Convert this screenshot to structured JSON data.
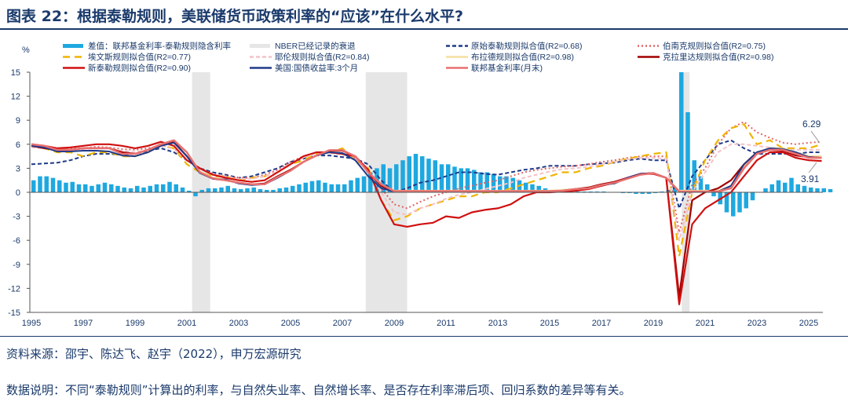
{
  "title": "图表 22：根据泰勒规则，美联储货币政策利率的“应该”在什么水平?",
  "source": "资料来源：邵宇、陈达飞、赵宇（2022），申万宏源研究",
  "note": "数据说明：不同“泰勒规则”计算出的利率，与自然失业率、自然增长率、是否存在利率滞后项、回归系数的差异等有关。",
  "chart_data": {
    "type": "line",
    "ylabel": "%",
    "ylim": [
      -15,
      15
    ],
    "yticks": [
      15,
      12,
      9,
      6,
      3,
      0,
      -3,
      -6,
      -9,
      -12,
      -15
    ],
    "xlim": [
      1995,
      2025.8
    ],
    "xticks": [
      "1995",
      "1997",
      "1999",
      "2001",
      "2003",
      "2005",
      "2007",
      "2009",
      "2011",
      "2013",
      "2015",
      "2017",
      "2019",
      "2021",
      "2023",
      "2025"
    ],
    "recessions": [
      [
        2001.2,
        2001.9
      ],
      [
        2007.9,
        2009.5
      ],
      [
        2020.1,
        2020.4
      ]
    ],
    "recession_label": "NBER已经记录的衰退",
    "x_start": 1995,
    "x_step": 0.5,
    "bars": {
      "name": "差值：联邦基金利率-泰勒规则隐含利率",
      "color": "#1ea8e0",
      "x_start": 1995,
      "x_step": 0.25,
      "values": [
        1.5,
        2,
        2,
        1.8,
        1.5,
        1.2,
        1.3,
        1,
        1,
        0.8,
        1,
        1.2,
        1,
        0.8,
        0.6,
        0.5,
        0.8,
        0.6,
        0.8,
        1,
        1,
        1.3,
        1,
        0.6,
        0.2,
        -0.5,
        0.3,
        0.5,
        0.5,
        0.6,
        0.8,
        0.5,
        0.4,
        0.5,
        0.6,
        0.4,
        0.3,
        0.3,
        0.5,
        0.6,
        0.8,
        1,
        1.2,
        1.4,
        1.5,
        1.2,
        1,
        1,
        1,
        1.5,
        1.8,
        2,
        2.5,
        3,
        3.5,
        3,
        3.5,
        4,
        4.5,
        4.8,
        4.5,
        4.2,
        4,
        3.5,
        3.5,
        3.2,
        3,
        3,
        2.8,
        2.5,
        2.5,
        2.3,
        2,
        2,
        1.8,
        1.5,
        1.2,
        1,
        0.8,
        0.5,
        0.3,
        0.2,
        0.1,
        0.1,
        0.1,
        0.1,
        0.1,
        0.1,
        0.1,
        0,
        0,
        -0.1,
        -0.1,
        -0.2,
        -0.2,
        -0.2,
        -0.1,
        0.1,
        0.3,
        0.5,
        15,
        10,
        4,
        2,
        1,
        -0.5,
        -1.5,
        -2.5,
        -3,
        -2.5,
        -2,
        -1,
        0,
        0.5,
        1,
        1.5,
        1.2,
        1.8,
        1,
        0.8,
        0.6,
        0.5,
        0.5,
        0.4
      ]
    },
    "series": [
      {
        "name": "原始泰勒规则拟合值(R2=0.68)",
        "color": "#1f3a8a",
        "style": "dash",
        "width": 2,
        "values": [
          3.5,
          3.6,
          3.7,
          4,
          4.5,
          4.8,
          4.8,
          4.7,
          4.8,
          5.2,
          5.5,
          5,
          4,
          3,
          2.5,
          2.2,
          1.8,
          2,
          2.5,
          3,
          3.8,
          4.2,
          4.6,
          4.6,
          4.4,
          4.2,
          3.5,
          1.5,
          0,
          0.5,
          1.2,
          1.5,
          2,
          2.5,
          2.5,
          2.3,
          2.2,
          2.5,
          2.8,
          3,
          3.3,
          3.3,
          3.3,
          3.5,
          3.6,
          3.7,
          4,
          4.2,
          4,
          4,
          -2,
          2,
          4,
          6,
          6.5,
          5.5,
          4.8,
          4.8,
          4.8,
          4.8,
          5,
          5
        ]
      },
      {
        "name": "伯南克规则拟合值(R2=0.75)",
        "color": "#e06666",
        "style": "dot",
        "width": 2,
        "values": [
          5.8,
          5.8,
          5.5,
          5.5,
          5.5,
          5.7,
          5.6,
          5.4,
          5.3,
          5.5,
          5.8,
          5.5,
          4,
          3,
          2.3,
          2,
          1.8,
          1.8,
          2.2,
          2.8,
          3.8,
          4.5,
          5,
          5,
          4.8,
          4.3,
          2.8,
          0.5,
          -1.5,
          -2,
          -1.2,
          -0.5,
          0,
          0.5,
          0.8,
          1.2,
          1.5,
          2,
          2.5,
          2.8,
          3,
          3.2,
          3.3,
          3.5,
          3.8,
          4,
          4.3,
          4.5,
          4.5,
          4.5,
          -5,
          1,
          3,
          6,
          8,
          8.8,
          7.5,
          6.8,
          6.2,
          6,
          6.2,
          6.29
        ]
      },
      {
        "name": "埃文斯规则拟合值(R2=0.77)",
        "color": "#f0b400",
        "style": "longdash",
        "width": 2.2,
        "values": [
          6,
          5.5,
          5,
          5,
          4.5,
          5,
          5,
          4.5,
          4.5,
          5,
          5.8,
          5.5,
          3.5,
          2.5,
          2,
          2,
          1.5,
          1.8,
          2,
          2.5,
          3.5,
          4,
          4.8,
          5,
          5.5,
          4,
          3,
          -1,
          -3.5,
          -3,
          -2,
          -1.5,
          -1,
          -0.5,
          -0.5,
          0,
          0,
          0.5,
          1,
          1.5,
          2,
          2.5,
          2.5,
          3,
          3.3,
          3.8,
          4.2,
          4.5,
          4.8,
          5,
          -8,
          0,
          4,
          6.5,
          8,
          8.5,
          6,
          6.5,
          5.5,
          5.5,
          5.5,
          6
        ]
      },
      {
        "name": "耶伦规则拟合值(R2=0.84)",
        "color": "#f4c2c8",
        "style": "dash",
        "width": 2,
        "values": [
          5.6,
          5.5,
          5.3,
          5.3,
          5.4,
          5.5,
          5.5,
          5.2,
          5,
          5.3,
          5.8,
          5.4,
          4,
          3,
          2.2,
          2,
          1.7,
          1.7,
          2,
          2.6,
          3.6,
          4.3,
          4.9,
          4.9,
          4.7,
          4.2,
          2.6,
          0,
          -2.5,
          -2.8,
          -2,
          -1.5,
          -0.8,
          -0.3,
          0,
          0.4,
          0.8,
          1.2,
          1.8,
          2.2,
          2.6,
          2.9,
          3,
          3.2,
          3.5,
          3.8,
          4.1,
          4.3,
          4.3,
          4.2,
          -6,
          0,
          2.5,
          5,
          6,
          6,
          5.8,
          5.6,
          5.4,
          5.3,
          5.3,
          5.3
        ]
      },
      {
        "name": "布拉德规则拟合值(R2=0.98)",
        "color": "#f5dfa0",
        "style": "solid",
        "width": 2.2,
        "values": [
          6,
          5.8,
          5.4,
          5.3,
          5.5,
          5.5,
          5.5,
          4.9,
          4.8,
          5.3,
          6,
          6.4,
          5,
          2.6,
          1.8,
          1.6,
          1.2,
          1,
          1,
          1.9,
          2.7,
          3.8,
          4.6,
          5.2,
          5.2,
          4.5,
          2.5,
          1,
          0.2,
          0.2,
          0.2,
          0.2,
          0.2,
          0.2,
          0.2,
          0.2,
          0.2,
          0.2,
          0.2,
          0.2,
          0.2,
          0.3,
          0.4,
          0.5,
          0.9,
          1.2,
          1.7,
          2.2,
          2.4,
          1.8,
          0.2,
          0.2,
          0.2,
          0.2,
          0.8,
          3.3,
          5,
          5.5,
          5.5,
          5,
          4.5,
          4.5
        ]
      },
      {
        "name": "克拉里达规则拟合值(R2=0.98)",
        "color": "#a00000",
        "style": "solid",
        "width": 2.2,
        "values": [
          5.8,
          5.5,
          5.3,
          5.3,
          5.5,
          5.5,
          5.5,
          5,
          4.8,
          5.3,
          6,
          6.3,
          4.5,
          2.5,
          1.7,
          1.5,
          1.2,
          1,
          1.1,
          2,
          2.8,
          3.8,
          4.6,
          5.2,
          5.2,
          4.5,
          2.5,
          0.8,
          0.1,
          0.1,
          0.1,
          0.1,
          0.1,
          0.1,
          0.1,
          0.1,
          0.1,
          0.1,
          0.1,
          0.1,
          0.1,
          0.2,
          0.4,
          0.6,
          1,
          1.3,
          1.8,
          2.3,
          2.4,
          1.8,
          -13,
          -1,
          0,
          0.5,
          1.5,
          3.5,
          5,
          5.3,
          5.2,
          4.6,
          4.4,
          4.3
        ]
      },
      {
        "name": "新泰勒规则拟合值(R2=0.90)",
        "color": "#d01010",
        "style": "solid",
        "width": 2.2,
        "values": [
          6,
          5.8,
          5.5,
          5.6,
          5.8,
          6,
          6,
          5.8,
          5.5,
          5.8,
          6.3,
          5.8,
          4,
          3,
          2.2,
          1.8,
          1.5,
          1.3,
          1.5,
          2.5,
          3.5,
          4.5,
          5,
          5,
          4.8,
          4.5,
          2.8,
          -1,
          -4,
          -4.3,
          -4,
          -3.8,
          -3,
          -3.2,
          -2.5,
          -2.2,
          -2,
          -1.5,
          -0.5,
          0,
          0,
          0.1,
          0.2,
          0.4,
          0.8,
          1.2,
          1.8,
          2.3,
          2.3,
          1.8,
          -14,
          -4,
          -2,
          -1,
          0,
          2,
          4,
          5,
          5,
          4.3,
          4,
          3.91
        ]
      },
      {
        "name": "美国:国债收益率:3个月",
        "color": "#1f3a8a",
        "style": "solid",
        "width": 2,
        "values": [
          5.8,
          5.6,
          5.1,
          5.1,
          5.2,
          5.2,
          5.1,
          4.6,
          4.5,
          5,
          5.8,
          6.2,
          4.5,
          2.4,
          1.7,
          1.6,
          1.1,
          0.9,
          1,
          1.8,
          2.7,
          3.8,
          4.6,
          5.0,
          4.9,
          4.0,
          2,
          0.5,
          0.1,
          0.1,
          0.1,
          0.1,
          0.1,
          0.1,
          0.1,
          0.1,
          0.1,
          0.1,
          0.1,
          0.1,
          0.1,
          0.2,
          0.4,
          0.5,
          0.9,
          1.1,
          1.8,
          2.3,
          2.4,
          1.8,
          0.1,
          0.1,
          0.1,
          0.1,
          0.8,
          3.5,
          5,
          5.5,
          5.4,
          5,
          4.4,
          4.3
        ]
      },
      {
        "name": "联邦基金利率(月末)",
        "color": "#e87070",
        "style": "solid",
        "width": 2.5,
        "values": [
          6,
          5.8,
          5.3,
          5.3,
          5.5,
          5.5,
          5.5,
          4.8,
          4.8,
          5.3,
          6,
          6.5,
          5,
          2.5,
          1.75,
          1.5,
          1.2,
          1,
          1,
          1.9,
          2.7,
          3.8,
          4.6,
          5.25,
          5.25,
          4.5,
          2.5,
          1,
          0.15,
          0.15,
          0.15,
          0.15,
          0.15,
          0.15,
          0.15,
          0.15,
          0.15,
          0.15,
          0.15,
          0.15,
          0.15,
          0.2,
          0.4,
          0.5,
          0.9,
          1.2,
          1.7,
          2.2,
          2.4,
          1.8,
          0.1,
          0.1,
          0.1,
          0.1,
          0.5,
          3,
          4.8,
          5.3,
          5.3,
          4.8,
          4.3,
          4.3
        ]
      }
    ],
    "annotations": [
      {
        "text": "6.29",
        "value": 6.29
      },
      {
        "text": "3.91",
        "value": 3.91
      }
    ]
  }
}
